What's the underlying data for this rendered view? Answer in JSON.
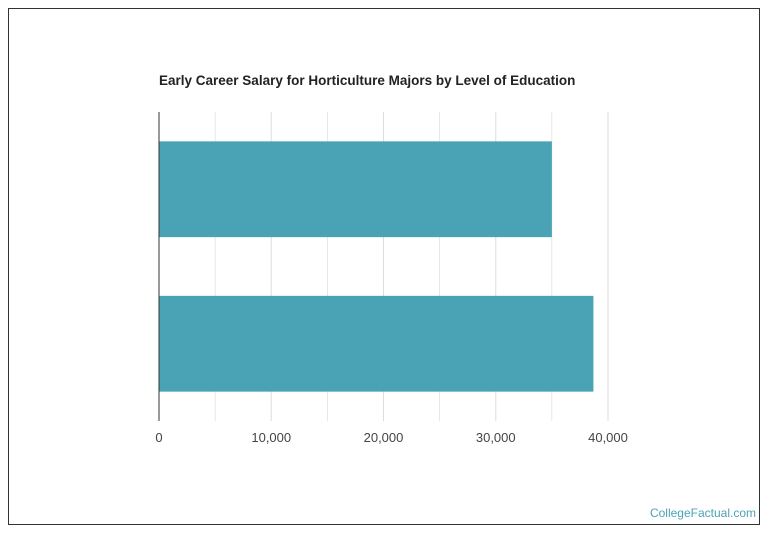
{
  "chart_data": {
    "type": "bar",
    "orientation": "horizontal",
    "title": "Early Career Salary for Horticulture Majors by Level of Education",
    "categories": [
      "",
      ""
    ],
    "values": [
      35000,
      38700
    ],
    "xlim": [
      0,
      40000
    ],
    "x_ticks": [
      "0",
      "10,000",
      "20,000",
      "30,000",
      "40,000"
    ],
    "xlabel": "",
    "ylabel": "",
    "grid": true,
    "bar_color": "#4aa3b5"
  },
  "footer": {
    "brand": "CollegeFactual.com"
  },
  "colors": {
    "grid": "#dddddd",
    "axis": "#333333",
    "frame": "#333333"
  }
}
